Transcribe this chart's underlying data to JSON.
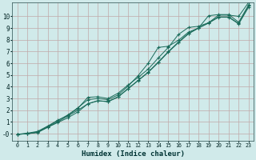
{
  "xlabel": "Humidex (Indice chaleur)",
  "bg_color": "#d0eaea",
  "grid_color": "#c0a8a8",
  "line_color": "#1a6b5a",
  "xlim": [
    -0.5,
    23.5
  ],
  "ylim": [
    -0.6,
    11.2
  ],
  "yticks": [
    0,
    1,
    2,
    3,
    4,
    5,
    6,
    7,
    8,
    9,
    10
  ],
  "xticks": [
    0,
    1,
    2,
    3,
    4,
    5,
    6,
    7,
    8,
    9,
    10,
    11,
    12,
    13,
    14,
    15,
    16,
    17,
    18,
    19,
    20,
    21,
    22,
    23
  ],
  "lines": [
    [
      -0.05,
      0.0,
      0.1,
      0.55,
      1.0,
      1.5,
      2.0,
      2.55,
      2.8,
      2.75,
      3.15,
      3.85,
      4.55,
      5.25,
      6.1,
      7.0,
      7.8,
      8.55,
      9.0,
      9.45,
      9.95,
      9.95,
      9.4,
      10.9
    ],
    [
      -0.05,
      0.0,
      0.15,
      0.6,
      1.1,
      1.6,
      2.2,
      2.9,
      3.0,
      2.9,
      3.3,
      4.05,
      4.95,
      6.0,
      7.35,
      7.45,
      7.95,
      8.65,
      9.0,
      10.05,
      10.15,
      10.15,
      9.5,
      11.0
    ],
    [
      -0.05,
      0.05,
      0.2,
      0.65,
      1.15,
      1.55,
      2.15,
      3.1,
      3.15,
      3.0,
      3.45,
      4.15,
      4.8,
      5.5,
      6.45,
      7.35,
      8.45,
      9.05,
      9.15,
      9.45,
      10.1,
      10.1,
      10.0,
      11.2
    ],
    [
      -0.05,
      0.0,
      0.12,
      0.55,
      0.95,
      1.35,
      1.85,
      2.55,
      2.82,
      2.72,
      3.12,
      3.82,
      4.52,
      5.22,
      6.05,
      6.95,
      7.75,
      8.5,
      9.0,
      9.42,
      9.92,
      9.92,
      9.35,
      10.8
    ]
  ]
}
